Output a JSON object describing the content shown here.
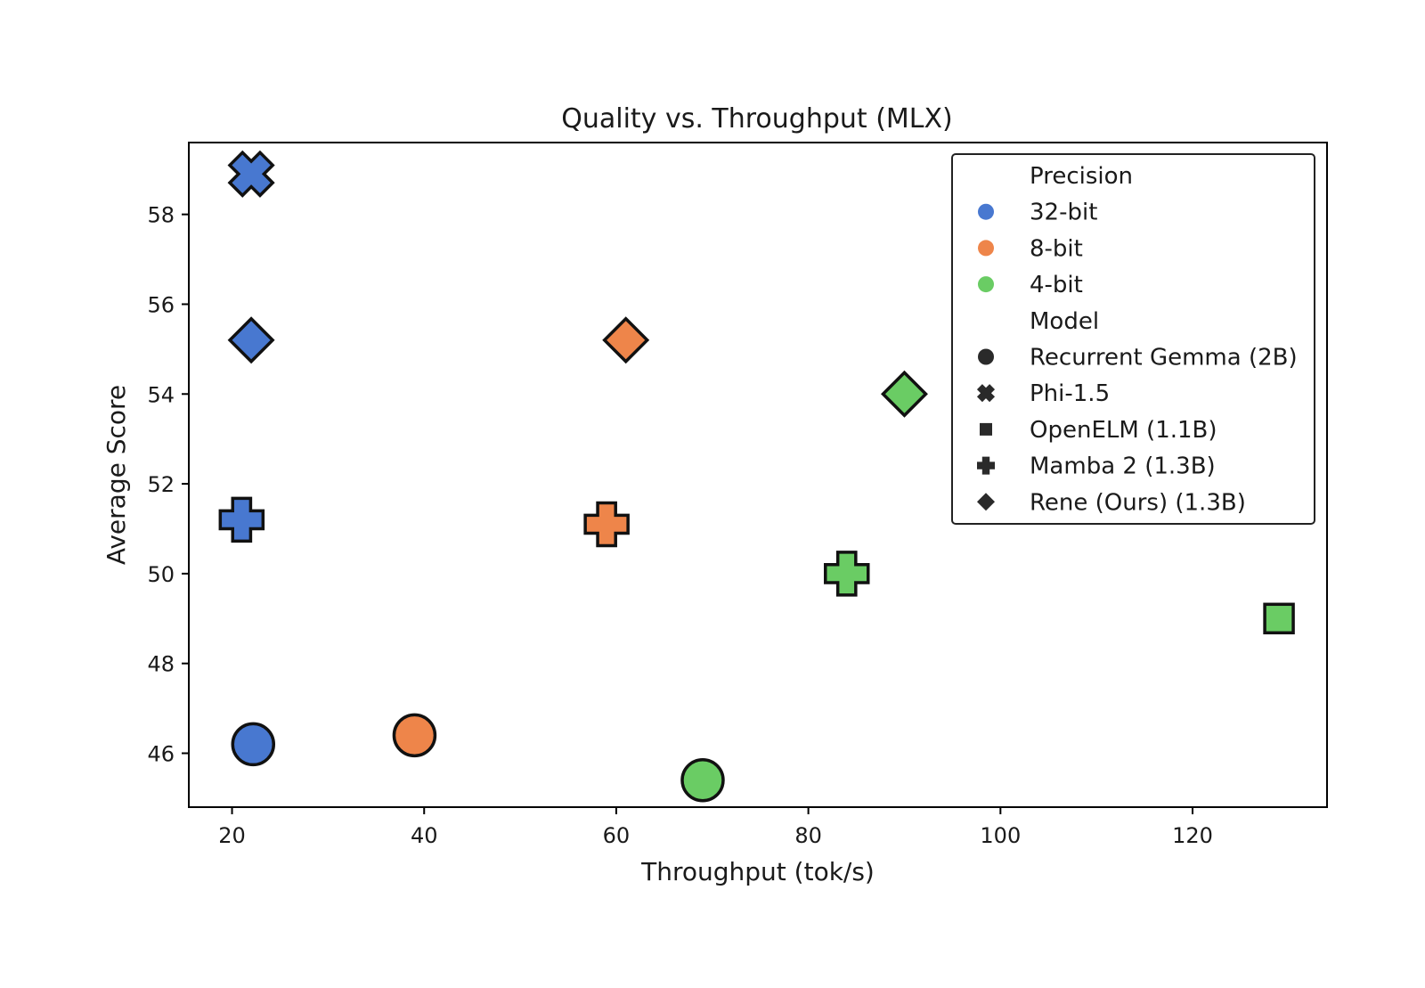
{
  "chart_data": {
    "type": "scatter",
    "title": "Quality vs. Throughput (MLX)",
    "xlabel": "Throughput (tok/s)",
    "ylabel": "Average Score",
    "xlim": [
      15.5,
      134
    ],
    "ylim": [
      44.8,
      59.6
    ],
    "xticks": [
      20,
      40,
      60,
      80,
      100,
      120
    ],
    "yticks": [
      46,
      48,
      50,
      52,
      54,
      56,
      58
    ],
    "grid": false,
    "legend_position": "top-right",
    "precision_colors": {
      "32-bit": "#4878d0",
      "8-bit": "#ee854a",
      "4-bit": "#6acc64"
    },
    "legend": {
      "precision_header": "Precision",
      "precision_items": [
        {
          "label": "32-bit",
          "color": "#4878d0"
        },
        {
          "label": "8-bit",
          "color": "#ee854a"
        },
        {
          "label": "4-bit",
          "color": "#6acc64"
        }
      ],
      "model_header": "Model",
      "model_items": [
        {
          "label": "Recurrent Gemma (2B)",
          "marker": "circle"
        },
        {
          "label": "Phi-1.5",
          "marker": "x"
        },
        {
          "label": "OpenELM (1.1B)",
          "marker": "square"
        },
        {
          "label": "Mamba 2 (1.3B)",
          "marker": "plus"
        },
        {
          "label": "Rene (Ours) (1.3B)",
          "marker": "diamond"
        }
      ]
    },
    "points": [
      {
        "model": "Phi-1.5",
        "precision": "32-bit",
        "marker": "x",
        "x": 22,
        "y": 58.9
      },
      {
        "model": "Rene (Ours) (1.3B)",
        "precision": "32-bit",
        "marker": "diamond",
        "x": 22,
        "y": 55.2
      },
      {
        "model": "Mamba 2 (1.3B)",
        "precision": "32-bit",
        "marker": "plus",
        "x": 21,
        "y": 51.2
      },
      {
        "model": "Recurrent Gemma (2B)",
        "precision": "32-bit",
        "marker": "circle",
        "x": 22.2,
        "y": 46.2
      },
      {
        "model": "Rene (Ours) (1.3B)",
        "precision": "8-bit",
        "marker": "diamond",
        "x": 61,
        "y": 55.2
      },
      {
        "model": "Mamba 2 (1.3B)",
        "precision": "8-bit",
        "marker": "plus",
        "x": 59,
        "y": 51.1
      },
      {
        "model": "Recurrent Gemma (2B)",
        "precision": "8-bit",
        "marker": "circle",
        "x": 39,
        "y": 46.4
      },
      {
        "model": "Rene (Ours) (1.3B)",
        "precision": "4-bit",
        "marker": "diamond",
        "x": 90,
        "y": 54.0
      },
      {
        "model": "Mamba 2 (1.3B)",
        "precision": "4-bit",
        "marker": "plus",
        "x": 84,
        "y": 50.0
      },
      {
        "model": "OpenELM (1.1B)",
        "precision": "4-bit",
        "marker": "square",
        "x": 129,
        "y": 49.0
      },
      {
        "model": "Recurrent Gemma (2B)",
        "precision": "4-bit",
        "marker": "circle",
        "x": 69,
        "y": 45.4
      }
    ]
  }
}
